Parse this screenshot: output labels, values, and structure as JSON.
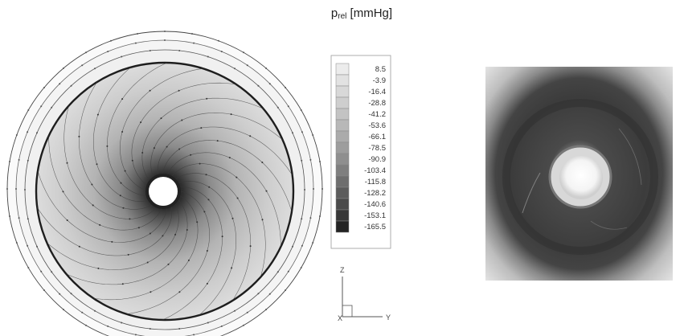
{
  "figure": {
    "title_symbol": "p",
    "title_subscript": "rel",
    "title_unit": " [mmHg]"
  },
  "legend": {
    "levels": [
      "8.5",
      "-3.9",
      "-16.4",
      "-28.8",
      "-41.2",
      "-53.6",
      "-66.1",
      "-78.5",
      "-90.9",
      "-103.4",
      "-115.8",
      "-128.2",
      "-140.6",
      "-153.1",
      "-165.5"
    ],
    "colors": [
      "#ececec",
      "#e2e2e2",
      "#d8d8d8",
      "#cecece",
      "#c3c3c3",
      "#b8b8b8",
      "#ababab",
      "#9d9d9d",
      "#8f8f8f",
      "#7f7f7f",
      "#6e6e6e",
      "#5c5c5c",
      "#4a4a4a",
      "#373737",
      "#232323"
    ]
  },
  "axes": {
    "vertical": "Z",
    "horizontal": "Y",
    "origin": "X"
  }
}
